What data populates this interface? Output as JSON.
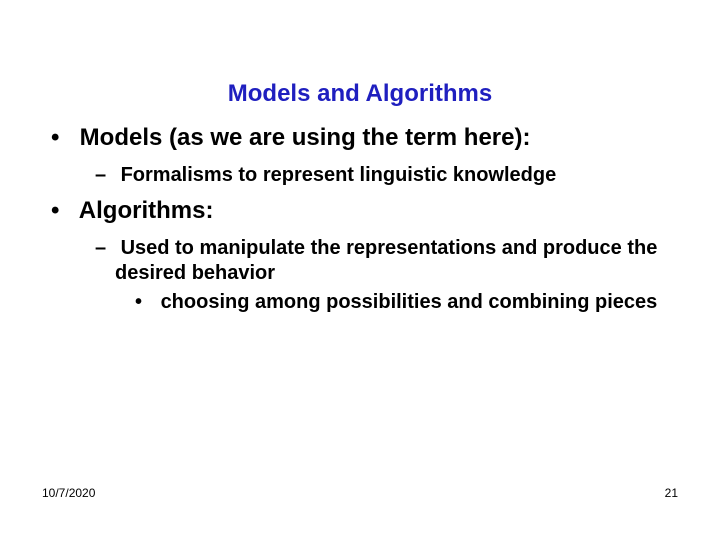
{
  "slide": {
    "title": "Models and Algorithms",
    "title_color": "#1f1fbf",
    "title_fontsize": 24,
    "bullets": {
      "b1_label": "Models (as we are using the term here):",
      "b1_sub1": "Formalisms to represent linguistic knowledge",
      "b2_label": "Algorithms:",
      "b2_sub1": "Used to manipulate the representations and produce the desired behavior",
      "b2_sub1_sub1": "choosing among possibilities and combining pieces"
    },
    "body_color": "#000000",
    "body_fontsize_l1": 24,
    "body_fontsize_l2": 20,
    "body_fontsize_l3": 20,
    "background_color": "#ffffff"
  },
  "footer": {
    "date": "10/7/2020",
    "page_number": "21",
    "fontsize": 12
  }
}
